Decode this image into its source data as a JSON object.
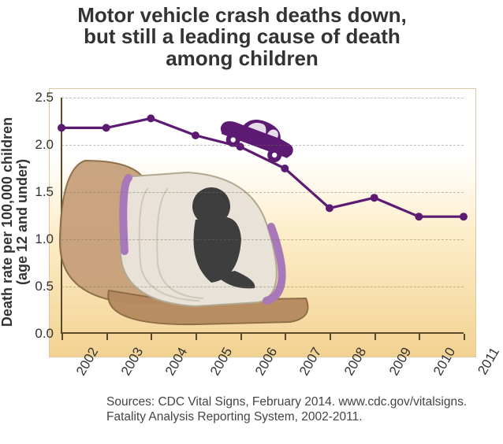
{
  "title": {
    "text": "Motor vehicle crash deaths down,\nbut still a leading cause of death\namong children",
    "fontsize": 26,
    "color": "#333333"
  },
  "chart": {
    "type": "line",
    "background_gradient": [
      "#ffffff",
      "#fdedc8",
      "#f2d292"
    ],
    "panel_border_color": "#d9c9a4",
    "grid_color": "rgba(120,110,90,0.45)",
    "axis_color": "#5a4a2a",
    "ylabel_line1": "Death rate per 100,000 children",
    "ylabel_line2": "(age 12 and under)",
    "ylabel_fontsize": 18,
    "ylim": [
      0.0,
      2.5
    ],
    "yticks": [
      0.0,
      0.5,
      1.0,
      1.5,
      2.0,
      2.5
    ],
    "ytick_labels": [
      "0.0",
      "0.5",
      "1.0",
      "1.5",
      "2.0",
      "2.5"
    ],
    "years": [
      "2002",
      "2003",
      "2004",
      "2005",
      "2006",
      "2007",
      "2008",
      "2009",
      "2010",
      "2011"
    ],
    "values": [
      2.18,
      2.18,
      2.28,
      2.1,
      1.98,
      1.75,
      1.33,
      1.44,
      1.24,
      1.24
    ],
    "line_color": "#5c1a72",
    "line_width": 3.2,
    "marker_radius": 5,
    "marker_color": "#5c1a72",
    "tick_fontsize": 17,
    "xtick_rotation": -60
  },
  "decor": {
    "car_body_color": "#5c1a72",
    "car_wheel_color": "#5c1a72",
    "seat_back_color": "#c7a07a",
    "seat_cushion_color": "#b6895f",
    "carseat_shell_color": "#e8e2d8",
    "carseat_accent_color": "#a878b8",
    "child_silhouette_color": "#3e3e3e"
  },
  "sources": {
    "line1": "Sources: CDC Vital Signs, February 2014. www.cdc.gov/vitalsigns.",
    "line2": "Fatality Analysis Reporting System, 2002-2011.",
    "fontsize": 15.5,
    "color": "#444444"
  }
}
